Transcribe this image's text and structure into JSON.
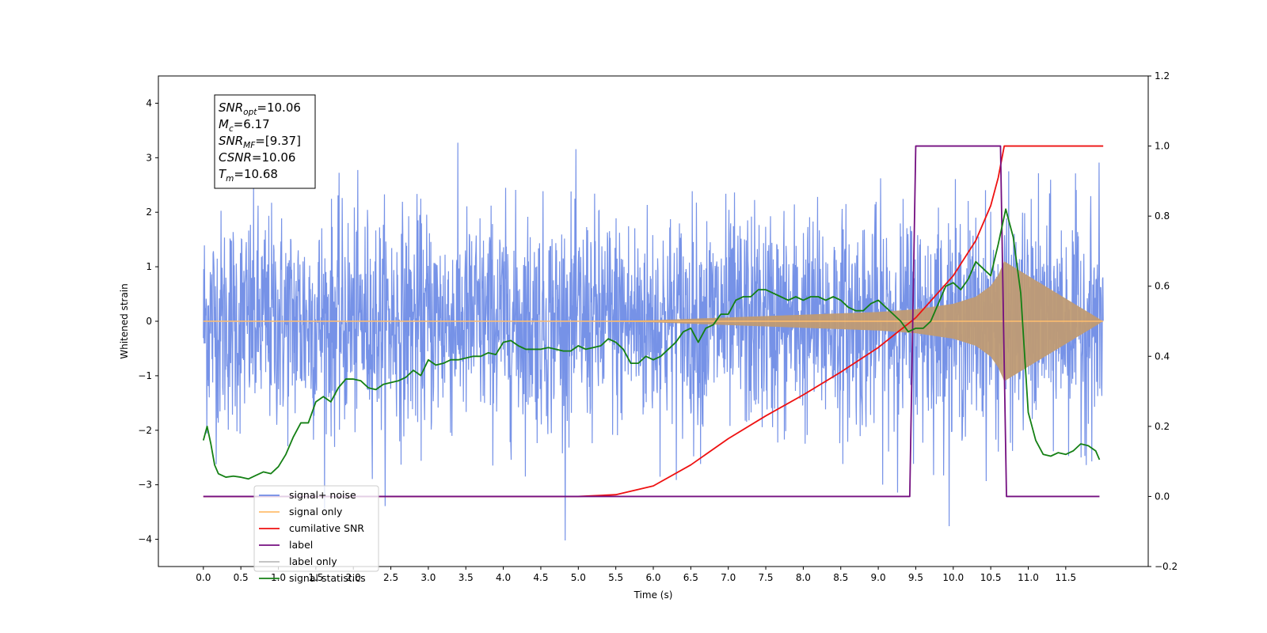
{
  "chart_data": {
    "type": "line",
    "title": "",
    "xlabel": "Time (s)",
    "ylabel": "Whitened strain",
    "xlim": [
      -0.6,
      12.6
    ],
    "ylim": [
      -4.5,
      4.5
    ],
    "y2lim": [
      -0.2,
      1.2
    ],
    "grid": false,
    "legend_position": "lower-left",
    "x_ticks": [
      0.0,
      0.5,
      1.0,
      1.5,
      2.0,
      2.5,
      3.0,
      3.5,
      4.0,
      4.5,
      5.0,
      5.5,
      6.0,
      6.5,
      7.0,
      7.5,
      8.0,
      8.5,
      9.0,
      9.5,
      10.0,
      10.5,
      11.0,
      11.5
    ],
    "x_tick_labels": [
      "0.0",
      "0.5",
      "1.0",
      "1.5",
      "2.0",
      "2.5",
      "3.0",
      "3.5",
      "4.0",
      "4.5",
      "5.0",
      "5.5",
      "6.0",
      "6.5",
      "7.0",
      "7.5",
      "8.0",
      "8.5",
      "9.0",
      "9.5",
      "10.0",
      "10.5",
      "11.0",
      "11.5"
    ],
    "y_ticks": [
      -4,
      -3,
      -2,
      -1,
      0,
      1,
      2,
      3,
      4
    ],
    "y_tick_labels": [
      "−4",
      "−3",
      "−2",
      "−1",
      "0",
      "1",
      "2",
      "3",
      "4"
    ],
    "y2_ticks": [
      -0.2,
      0.0,
      0.2,
      0.4,
      0.6,
      0.8,
      1.0,
      1.2
    ],
    "y2_tick_labels": [
      "−0.2",
      "0.0",
      "0.2",
      "0.4",
      "0.6",
      "0.8",
      "1.0",
      "1.2"
    ],
    "annotation_box": {
      "lines": [
        {
          "sym": "SNR",
          "sub": "opt",
          "value": "=10.06"
        },
        {
          "sym": "M",
          "sub": "c",
          "value": "=6.17"
        },
        {
          "sym": "SNR",
          "sub": "MF",
          "value": "=[9.37]"
        },
        {
          "sym": "CSNR",
          "sub": "",
          "value": "=10.06"
        },
        {
          "sym": "T",
          "sub": "m",
          "value": "=10.68"
        }
      ]
    },
    "series": [
      {
        "name": "signal+ noise",
        "axis": "left",
        "color": "#6f8ce6",
        "kind": "noise_band",
        "x_range": [
          0.0,
          12.0
        ],
        "typical_envelope": [
          -2.2,
          2.2
        ],
        "max": 4.05,
        "min": -4.1
      },
      {
        "name": "signal only",
        "axis": "left",
        "color": "#ffbe6e",
        "kind": "chirp_envelope",
        "x": [
          0.0,
          5.0,
          6.0,
          7.0,
          8.0,
          9.0,
          9.5,
          10.0,
          10.3,
          10.5,
          10.6,
          10.68,
          12.0
        ],
        "amplitude": [
          0.0,
          0.0,
          0.02,
          0.07,
          0.12,
          0.17,
          0.22,
          0.32,
          0.45,
          0.65,
          0.85,
          1.1,
          0.0
        ]
      },
      {
        "name": "cumilative SNR",
        "axis": "right",
        "color": "#ee1111",
        "x": [
          0.0,
          5.0,
          5.5,
          6.0,
          6.5,
          7.0,
          7.5,
          8.0,
          8.5,
          9.0,
          9.5,
          10.0,
          10.3,
          10.5,
          10.6,
          10.68,
          11.0,
          12.0
        ],
        "y": [
          0.0,
          0.0,
          0.005,
          0.03,
          0.09,
          0.165,
          0.23,
          0.29,
          0.355,
          0.425,
          0.51,
          0.63,
          0.73,
          0.83,
          0.91,
          1.0,
          1.0,
          1.0
        ]
      },
      {
        "name": "label",
        "axis": "right",
        "color": "#740f80",
        "x": [
          0.0,
          9.42,
          9.5,
          10.63,
          10.71,
          11.95
        ],
        "y": [
          0.0,
          0.0,
          1.0,
          1.0,
          0.0,
          0.0
        ]
      },
      {
        "name": "label only",
        "axis": "right",
        "color": "#bbbbbb",
        "hidden": true
      },
      {
        "name": "signal statistics",
        "axis": "right",
        "color": "#148014",
        "x": [
          0.0,
          0.05,
          0.1,
          0.15,
          0.2,
          0.3,
          0.4,
          0.5,
          0.6,
          0.7,
          0.8,
          0.9,
          1.0,
          1.1,
          1.2,
          1.3,
          1.4,
          1.5,
          1.6,
          1.7,
          1.8,
          1.9,
          2.0,
          2.1,
          2.2,
          2.3,
          2.4,
          2.5,
          2.6,
          2.7,
          2.8,
          2.9,
          3.0,
          3.1,
          3.2,
          3.3,
          3.4,
          3.5,
          3.6,
          3.7,
          3.8,
          3.9,
          4.0,
          4.1,
          4.2,
          4.3,
          4.4,
          4.5,
          4.6,
          4.7,
          4.8,
          4.9,
          5.0,
          5.1,
          5.2,
          5.3,
          5.4,
          5.5,
          5.6,
          5.7,
          5.8,
          5.9,
          6.0,
          6.1,
          6.2,
          6.3,
          6.4,
          6.5,
          6.6,
          6.7,
          6.8,
          6.9,
          7.0,
          7.1,
          7.2,
          7.3,
          7.4,
          7.5,
          7.6,
          7.7,
          7.8,
          7.9,
          8.0,
          8.1,
          8.2,
          8.3,
          8.4,
          8.5,
          8.6,
          8.7,
          8.8,
          8.9,
          9.0,
          9.1,
          9.2,
          9.3,
          9.4,
          9.5,
          9.6,
          9.7,
          9.8,
          9.9,
          10.0,
          10.1,
          10.2,
          10.3,
          10.4,
          10.5,
          10.6,
          10.7,
          10.8,
          10.9,
          11.0,
          11.1,
          11.2,
          11.3,
          11.4,
          11.5,
          11.6,
          11.7,
          11.8,
          11.9,
          11.95
        ],
        "y": [
          0.16,
          0.2,
          0.15,
          0.09,
          0.065,
          0.055,
          0.058,
          0.055,
          0.05,
          0.06,
          0.07,
          0.065,
          0.085,
          0.12,
          0.17,
          0.21,
          0.21,
          0.27,
          0.285,
          0.27,
          0.31,
          0.335,
          0.335,
          0.33,
          0.31,
          0.305,
          0.32,
          0.325,
          0.33,
          0.34,
          0.36,
          0.345,
          0.39,
          0.375,
          0.38,
          0.39,
          0.39,
          0.395,
          0.4,
          0.4,
          0.41,
          0.405,
          0.44,
          0.445,
          0.43,
          0.42,
          0.42,
          0.42,
          0.425,
          0.42,
          0.415,
          0.415,
          0.43,
          0.42,
          0.425,
          0.43,
          0.45,
          0.44,
          0.42,
          0.38,
          0.38,
          0.4,
          0.39,
          0.4,
          0.42,
          0.44,
          0.47,
          0.48,
          0.44,
          0.48,
          0.49,
          0.52,
          0.52,
          0.56,
          0.57,
          0.57,
          0.59,
          0.59,
          0.58,
          0.57,
          0.56,
          0.57,
          0.56,
          0.57,
          0.57,
          0.56,
          0.57,
          0.56,
          0.54,
          0.53,
          0.53,
          0.55,
          0.56,
          0.54,
          0.52,
          0.5,
          0.47,
          0.48,
          0.48,
          0.5,
          0.55,
          0.6,
          0.61,
          0.59,
          0.62,
          0.67,
          0.65,
          0.63,
          0.72,
          0.82,
          0.74,
          0.58,
          0.24,
          0.16,
          0.12,
          0.115,
          0.125,
          0.12,
          0.13,
          0.15,
          0.145,
          0.13,
          0.105
        ]
      }
    ]
  }
}
